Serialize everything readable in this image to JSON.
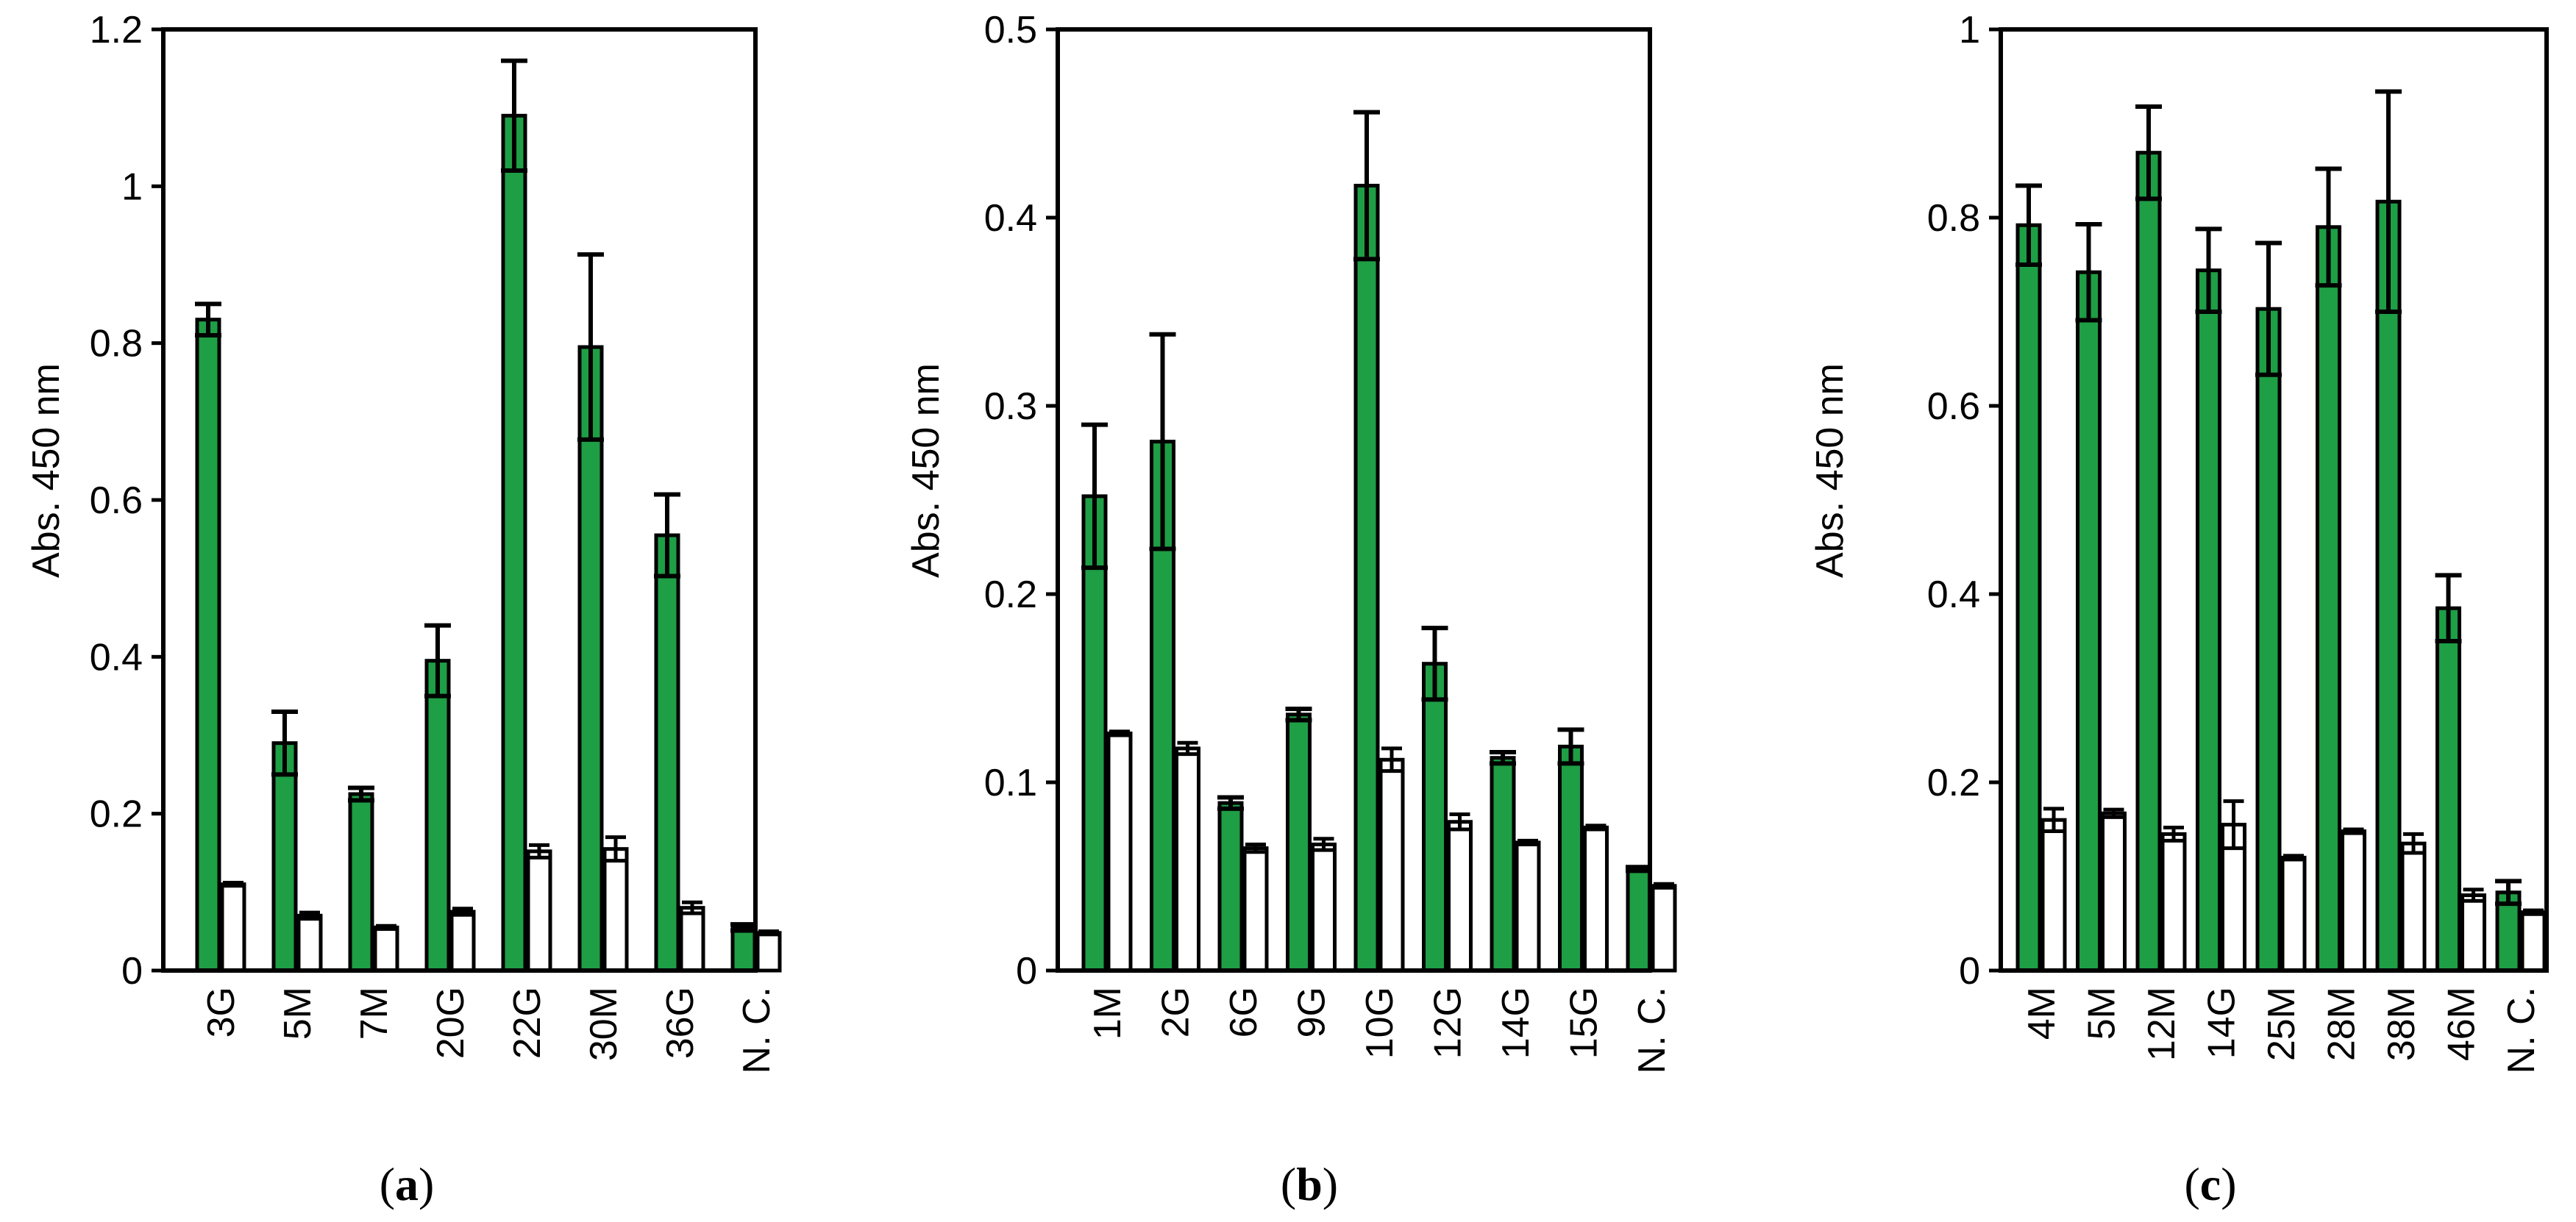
{
  "chart_data": [
    {
      "type": "bar",
      "panel": "a",
      "ylabel": "Abs. 450 nm",
      "ylim": [
        0,
        1.2
      ],
      "yticks": [
        0,
        0.2,
        0.4,
        0.6,
        0.8,
        1,
        1.2
      ],
      "categories": [
        "3G",
        "5M",
        "7M",
        "20G",
        "22G",
        "30M",
        "36G",
        "N. C."
      ],
      "series": [
        {
          "name": "green",
          "color": "#1e9e45",
          "values": [
            0.83,
            0.29,
            0.225,
            0.395,
            1.09,
            0.795,
            0.555,
            0.055
          ],
          "errors": [
            0.02,
            0.04,
            0.008,
            0.045,
            0.07,
            0.118,
            0.052,
            0.004
          ]
        },
        {
          "name": "white",
          "color": "#ffffff",
          "values": [
            0.11,
            0.07,
            0.055,
            0.075,
            0.152,
            0.155,
            0.08,
            0.048
          ],
          "errors": [
            0.002,
            0.004,
            0.002,
            0.004,
            0.008,
            0.015,
            0.007,
            0.002
          ]
        }
      ]
    },
    {
      "type": "bar",
      "panel": "b",
      "ylabel": "Abs. 450 nm",
      "ylim": [
        0,
        0.5
      ],
      "yticks": [
        0,
        0.1,
        0.2,
        0.3,
        0.4,
        0.5
      ],
      "categories": [
        "1M",
        "2G",
        "6G",
        "9G",
        "10G",
        "12G",
        "14G",
        "15G",
        "N. C."
      ],
      "series": [
        {
          "name": "green",
          "color": "#1e9e45",
          "values": [
            0.252,
            0.281,
            0.089,
            0.136,
            0.417,
            0.163,
            0.113,
            0.119,
            0.054
          ],
          "errors": [
            0.038,
            0.057,
            0.003,
            0.003,
            0.039,
            0.019,
            0.003,
            0.009,
            0.001
          ]
        },
        {
          "name": "white",
          "color": "#ffffff",
          "values": [
            0.126,
            0.118,
            0.065,
            0.067,
            0.112,
            0.079,
            0.068,
            0.076,
            0.045
          ],
          "errors": [
            0.001,
            0.003,
            0.002,
            0.003,
            0.006,
            0.004,
            0.001,
            0.001,
            0.001
          ]
        }
      ]
    },
    {
      "type": "bar",
      "panel": "c",
      "ylabel": "Abs. 450 nm",
      "ylim": [
        0,
        1
      ],
      "yticks": [
        0,
        0.2,
        0.4,
        0.6,
        0.8,
        1
      ],
      "categories": [
        "4M",
        "5M",
        "12M",
        "14G",
        "25M",
        "28M",
        "38M",
        "46M",
        "N. C."
      ],
      "series": [
        {
          "name": "green",
          "color": "#1e9e45",
          "values": [
            0.792,
            0.742,
            0.869,
            0.744,
            0.703,
            0.79,
            0.817,
            0.385,
            0.083
          ],
          "errors": [
            0.042,
            0.051,
            0.049,
            0.044,
            0.07,
            0.062,
            0.117,
            0.035,
            0.012
          ]
        },
        {
          "name": "white",
          "color": "#ffffff",
          "values": [
            0.16,
            0.167,
            0.145,
            0.155,
            0.12,
            0.148,
            0.135,
            0.08,
            0.062
          ],
          "errors": [
            0.012,
            0.004,
            0.007,
            0.025,
            0.002,
            0.002,
            0.01,
            0.006,
            0.002
          ]
        }
      ]
    }
  ],
  "panel_labels": [
    {
      "open": "(",
      "letter": "a",
      "close": ")"
    },
    {
      "open": "(",
      "letter": "b",
      "close": ")"
    },
    {
      "open": "(",
      "letter": "c",
      "close": ")"
    }
  ]
}
